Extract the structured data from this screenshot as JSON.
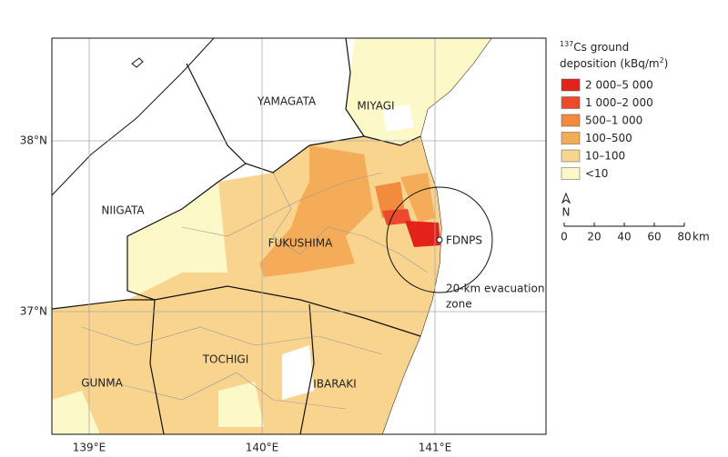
{
  "legend": {
    "title": {
      "mass": "137",
      "line1": "Cs ground",
      "line2": "deposition (kBq/m",
      "sup": "2",
      "close": ")"
    },
    "items": [
      {
        "label": "2 000–5 000",
        "color": "#e3221c"
      },
      {
        "label": "1 000–2 000",
        "color": "#ec4a2c"
      },
      {
        "label": "500–1 000",
        "color": "#f28b3d"
      },
      {
        "label": "100–500",
        "color": "#f5ac58"
      },
      {
        "label": "10–100",
        "color": "#f9d48e"
      },
      {
        "label": "<10",
        "color": "#fdf8c8"
      }
    ]
  },
  "labels": {
    "prefectures": [
      "YAMAGATA",
      "MIYAGI",
      "NIIGATA",
      "FUKUSHIMA",
      "TOCHIGI",
      "GUNMA",
      "IBARAKI"
    ],
    "plant": "FDNPS",
    "zone": [
      "20-km evacuation",
      "zone"
    ]
  },
  "grid": {
    "lat": [
      "38°N",
      "37°N"
    ],
    "lon": [
      "139°E",
      "140°E",
      "141°E"
    ]
  },
  "north": "N",
  "scale": {
    "ticks": [
      0,
      20,
      40,
      60,
      80
    ],
    "unit": "km"
  }
}
